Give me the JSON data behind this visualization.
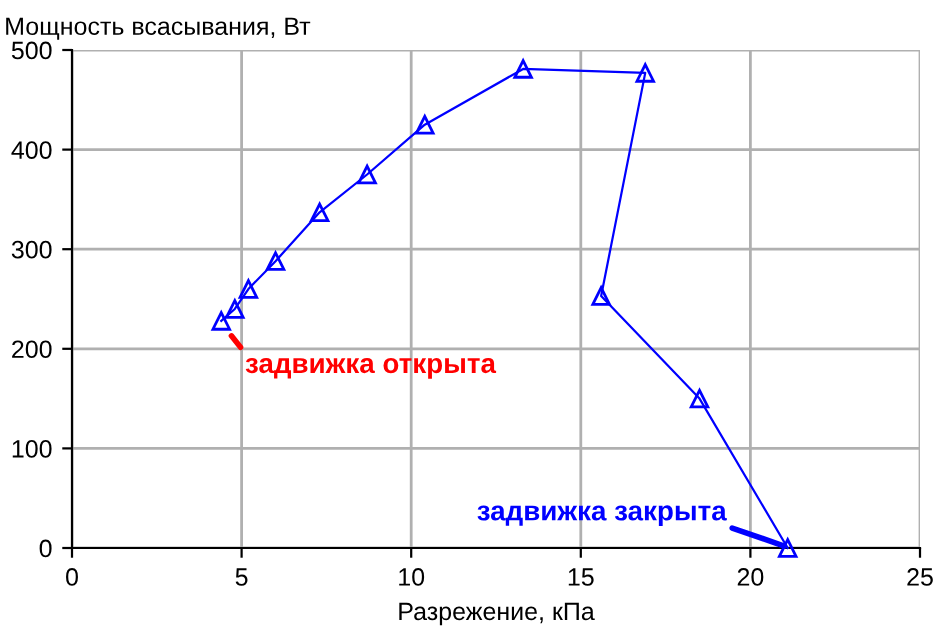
{
  "chart_data": {
    "type": "line",
    "xlabel": "Разрежение, кПа",
    "ylabel": "Мощность всасывания, Вт",
    "series": [
      {
        "color": "#0000ff",
        "x": [
          4.4,
          4.8,
          5.2,
          6.0,
          7.3,
          8.7,
          10.4,
          13.3,
          16.9,
          15.6,
          18.5,
          21.1
        ],
        "values": [
          228,
          240,
          260,
          288,
          337,
          375,
          425,
          481,
          477,
          253,
          150,
          0
        ]
      }
    ],
    "xlim": [
      0,
      25
    ],
    "xticks": [
      0,
      5,
      10,
      15,
      20,
      25
    ],
    "ylim": [
      0,
      500
    ],
    "yticks": [
      0,
      100,
      200,
      300,
      400,
      500
    ],
    "grid": true,
    "marker": "triangle",
    "line_style": "solid",
    "annotations": [
      {
        "text": "задвижка открыта",
        "x": 4.4,
        "y": 228
      },
      {
        "text": "задвижка закрыта",
        "x": 21.1,
        "y": 0
      }
    ]
  }
}
